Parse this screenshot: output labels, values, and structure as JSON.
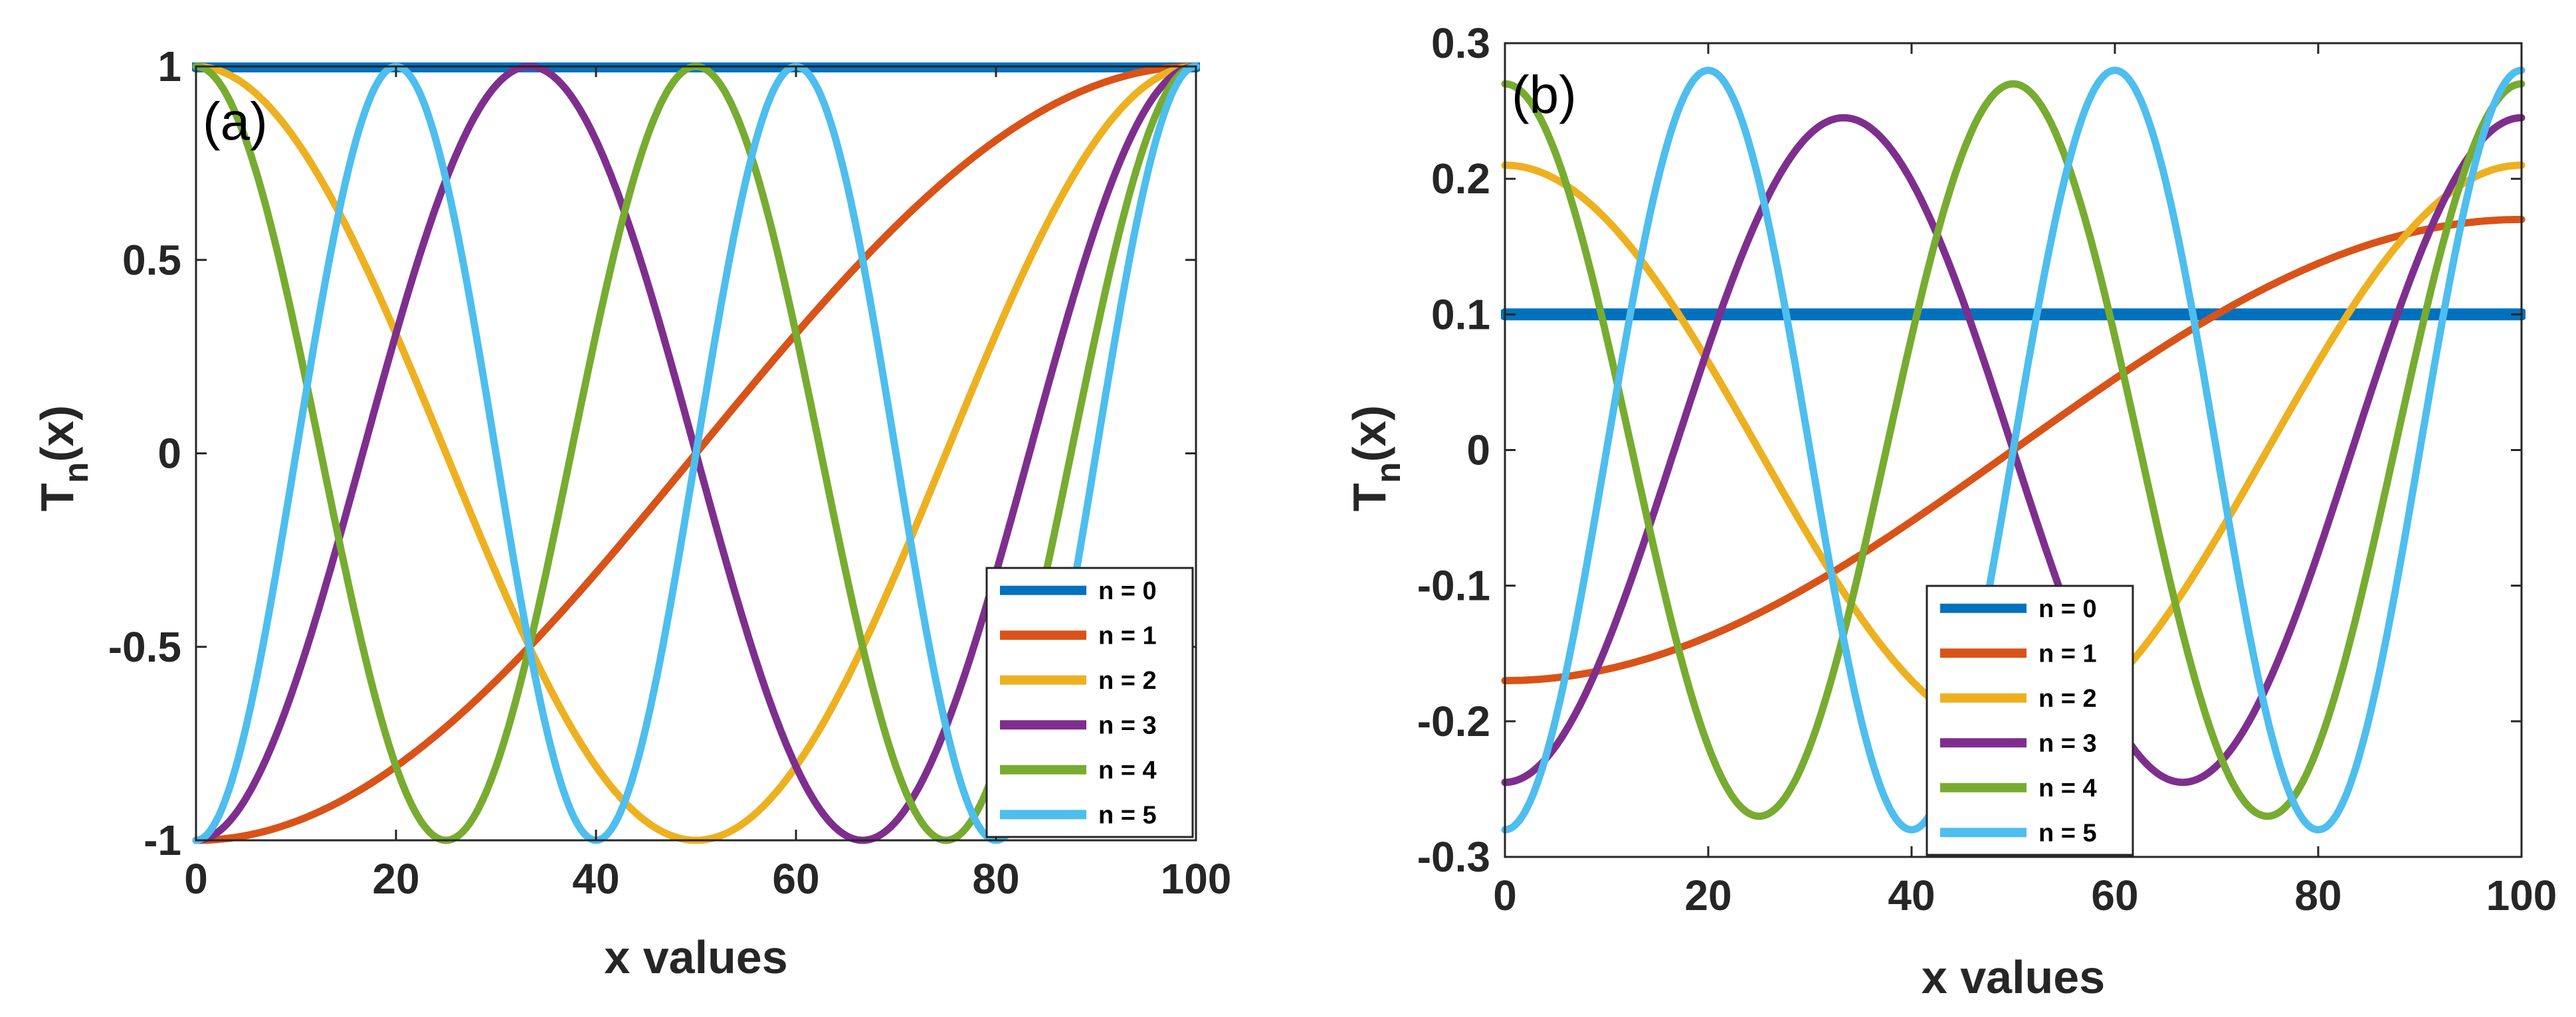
{
  "chart_data": [
    {
      "type": "line",
      "panel_label": "(a)",
      "xlabel": "x values",
      "ylabel": "T",
      "ylabel_sub": "n",
      "ylabel_tail": "(x)",
      "xlim": [
        0,
        100
      ],
      "ylim": [
        -1,
        1
      ],
      "xticks": [
        0,
        20,
        40,
        60,
        80,
        100
      ],
      "xtick_labels": [
        "0",
        "20",
        "40",
        "60",
        "80",
        "100"
      ],
      "yticks": [
        -1,
        -0.5,
        0,
        0.5,
        1
      ],
      "ytick_labels": [
        "-1",
        "-0.5",
        "0",
        "0.5",
        "1"
      ],
      "legend_position": "bottom-right",
      "series": [
        {
          "name": "n = 0",
          "color": "#0072BD",
          "order": 0,
          "scale": 1
        },
        {
          "name": "n = 1",
          "color": "#D95319",
          "order": 1,
          "scale": 1
        },
        {
          "name": "n = 2",
          "color": "#EDB120",
          "order": 2,
          "scale": 1
        },
        {
          "name": "n = 3",
          "color": "#7E2F8E",
          "order": 3,
          "scale": 1
        },
        {
          "name": "n = 4",
          "color": "#77AC30",
          "order": 4,
          "scale": 1
        },
        {
          "name": "n = 5",
          "color": "#4DBEEE",
          "order": 5,
          "scale": 1
        }
      ]
    },
    {
      "type": "line",
      "panel_label": "(b)",
      "xlabel": "x values",
      "ylabel": "T",
      "ylabel_sub": "n",
      "ylabel_tail": "(x)",
      "xlim": [
        0,
        100
      ],
      "ylim": [
        -0.3,
        0.3
      ],
      "xticks": [
        0,
        20,
        40,
        60,
        80,
        100
      ],
      "xtick_labels": [
        "0",
        "20",
        "40",
        "60",
        "80",
        "100"
      ],
      "yticks": [
        -0.3,
        -0.2,
        -0.1,
        0,
        0.1,
        0.2,
        0.3
      ],
      "ytick_labels": [
        "-0.3",
        "-0.2",
        "-0.1",
        "0",
        "0.1",
        "0.2",
        "0.3"
      ],
      "legend_position": "bottom-center",
      "series": [
        {
          "name": "n = 0",
          "color": "#0072BD",
          "order": 0,
          "scale": 0.1
        },
        {
          "name": "n = 1",
          "color": "#D95319",
          "order": 1,
          "scale": 0.17
        },
        {
          "name": "n = 2",
          "color": "#EDB120",
          "order": 2,
          "scale": 0.21
        },
        {
          "name": "n = 3",
          "color": "#7E2F8E",
          "order": 3,
          "scale": 0.245
        },
        {
          "name": "n = 4",
          "color": "#77AC30",
          "order": 4,
          "scale": 0.27
        },
        {
          "name": "n = 5",
          "color": "#4DBEEE",
          "order": 5,
          "scale": 0.28
        }
      ]
    }
  ]
}
